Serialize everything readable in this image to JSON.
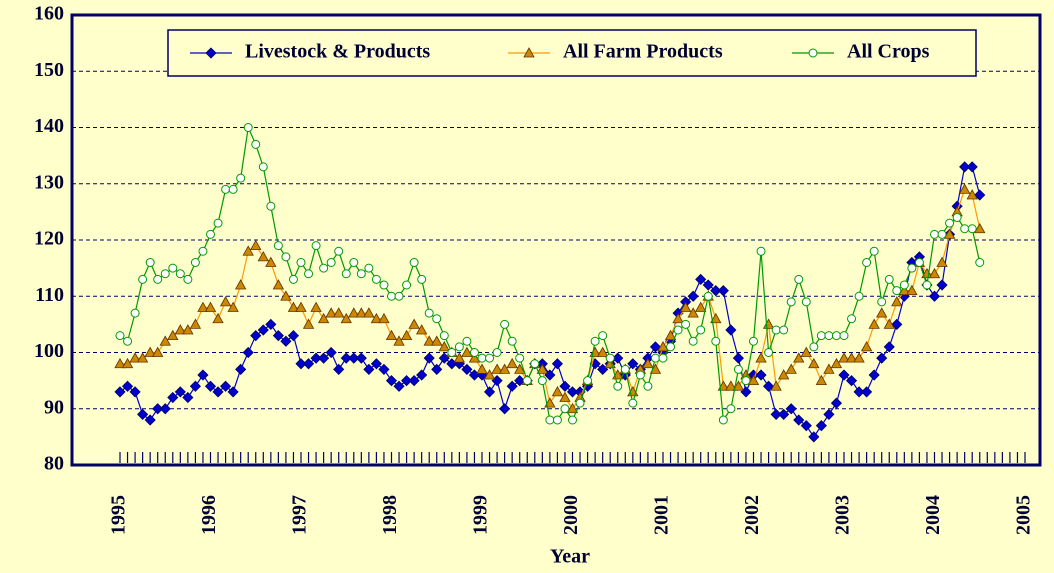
{
  "chart_data": {
    "type": "line",
    "x_label": "Year",
    "categories": [
      "1995",
      null,
      null,
      null,
      null,
      null,
      null,
      null,
      null,
      null,
      null,
      null,
      "1996",
      null,
      null,
      null,
      null,
      null,
      null,
      null,
      null,
      null,
      null,
      null,
      "1997",
      null,
      null,
      null,
      null,
      null,
      null,
      null,
      null,
      null,
      null,
      null,
      "1998",
      null,
      null,
      null,
      null,
      null,
      null,
      null,
      null,
      null,
      null,
      null,
      "1999",
      null,
      null,
      null,
      null,
      null,
      null,
      null,
      null,
      null,
      null,
      null,
      "2000",
      null,
      null,
      null,
      null,
      null,
      null,
      null,
      null,
      null,
      null,
      null,
      "2001",
      null,
      null,
      null,
      null,
      null,
      null,
      null,
      null,
      null,
      null,
      null,
      "2002",
      null,
      null,
      null,
      null,
      null,
      null,
      null,
      null,
      null,
      null,
      null,
      "2003",
      null,
      null,
      null,
      null,
      null,
      null,
      null,
      null,
      null,
      null,
      null,
      "2004",
      null,
      null,
      null,
      null,
      null,
      null,
      null,
      null,
      null,
      null,
      null,
      "2005"
    ],
    "series": [
      {
        "name": "Livestock & Products",
        "color": "#0000cc",
        "marker": "diamond",
        "values": [
          93,
          94,
          93,
          89,
          88,
          90,
          90,
          92,
          93,
          92,
          94,
          96,
          94,
          93,
          94,
          93,
          97,
          100,
          103,
          104,
          105,
          103,
          102,
          103,
          98,
          98,
          99,
          99,
          100,
          97,
          99,
          99,
          99,
          97,
          98,
          97,
          95,
          94,
          95,
          95,
          96,
          99,
          97,
          99,
          98,
          98,
          97,
          96,
          96,
          93,
          95,
          90,
          94,
          95,
          95,
          98,
          98,
          96,
          98,
          94,
          93,
          93,
          94,
          98,
          97,
          98,
          99,
          96,
          98,
          97,
          99,
          101,
          100,
          102,
          107,
          109,
          110,
          113,
          112,
          111,
          111,
          104,
          99,
          93,
          96,
          96,
          94,
          89,
          89,
          90,
          88,
          87,
          85,
          87,
          89,
          91,
          96,
          95,
          93,
          93,
          96,
          99,
          101,
          105,
          110,
          116,
          117,
          112,
          110,
          112,
          121,
          126,
          133,
          133,
          128,
          null,
          null,
          null,
          null,
          null,
          null
        ]
      },
      {
        "name": "All Farm Products",
        "color": "#ff9900",
        "marker": "triangle",
        "values": [
          98,
          98,
          99,
          99,
          100,
          100,
          102,
          103,
          104,
          104,
          105,
          108,
          108,
          106,
          109,
          108,
          112,
          118,
          119,
          117,
          116,
          112,
          110,
          108,
          108,
          105,
          108,
          106,
          107,
          107,
          106,
          107,
          107,
          107,
          106,
          106,
          103,
          102,
          103,
          105,
          104,
          102,
          102,
          101,
          100,
          99,
          100,
          99,
          97,
          96,
          97,
          97,
          98,
          97,
          95,
          98,
          97,
          91,
          93,
          92,
          90,
          92,
          95,
          100,
          100,
          98,
          96,
          97,
          93,
          97,
          98,
          97,
          101,
          103,
          106,
          108,
          107,
          108,
          110,
          106,
          94,
          94,
          94,
          96,
          95,
          99,
          105,
          94,
          96,
          97,
          99,
          100,
          98,
          95,
          97,
          98,
          99,
          99,
          99,
          101,
          105,
          107,
          105,
          109,
          111,
          111,
          116,
          114,
          114,
          116,
          121,
          125,
          129,
          128,
          122,
          null,
          null,
          null,
          null,
          null,
          null
        ]
      },
      {
        "name": "All Crops",
        "color": "#009900",
        "marker": "circle",
        "values": [
          103,
          102,
          107,
          113,
          116,
          113,
          114,
          115,
          114,
          113,
          116,
          118,
          121,
          123,
          129,
          129,
          131,
          140,
          137,
          133,
          126,
          119,
          117,
          113,
          116,
          114,
          119,
          115,
          116,
          118,
          114,
          116,
          114,
          115,
          113,
          112,
          110,
          110,
          112,
          116,
          113,
          107,
          106,
          103,
          100,
          101,
          102,
          100,
          99,
          99,
          100,
          105,
          102,
          99,
          95,
          98,
          95,
          88,
          88,
          90,
          88,
          91,
          95,
          102,
          103,
          99,
          94,
          97,
          91,
          96,
          94,
          99,
          99,
          101,
          104,
          105,
          102,
          104,
          110,
          102,
          88,
          90,
          97,
          95,
          102,
          118,
          100,
          104,
          104,
          109,
          113,
          109,
          101,
          103,
          103,
          103,
          103,
          106,
          110,
          116,
          118,
          109,
          113,
          111,
          112,
          115,
          116,
          112,
          121,
          121,
          123,
          124,
          122,
          122,
          116,
          null,
          null,
          null,
          null,
          null,
          null
        ]
      }
    ],
    "ylim": [
      80,
      160
    ],
    "yticks": [
      80,
      90,
      100,
      110,
      120,
      130,
      140,
      150,
      160
    ],
    "grid": true,
    "legend": "top"
  }
}
